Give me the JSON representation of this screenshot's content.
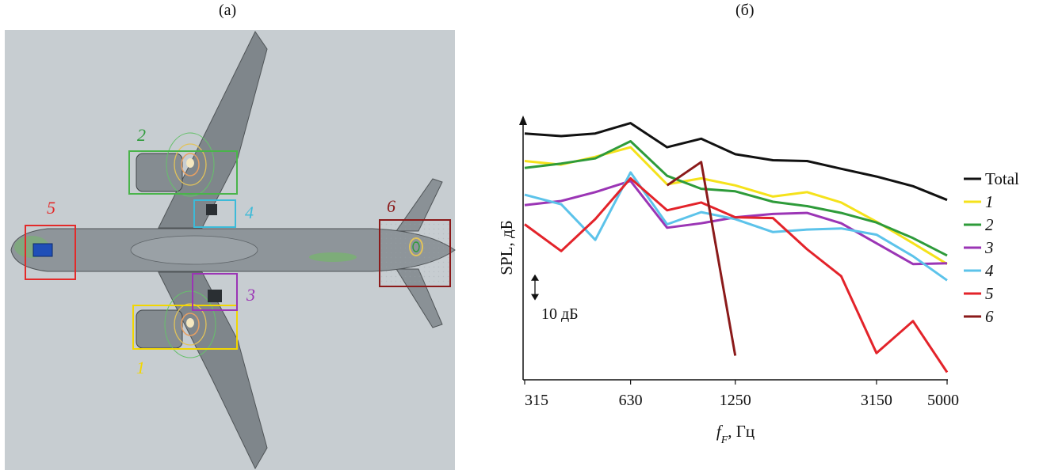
{
  "figure": {
    "panel_a_label": "(а)",
    "panel_b_label": "(б)"
  },
  "panel_a": {
    "regions": [
      {
        "label": "1",
        "color": "#f2d600"
      },
      {
        "label": "2",
        "color": "#2e9b3a"
      },
      {
        "label": "3",
        "color": "#9b35b5"
      },
      {
        "label": "4",
        "color": "#3cbad8"
      },
      {
        "label": "5",
        "color": "#e32a2a"
      },
      {
        "label": "6",
        "color": "#8b1a1a"
      }
    ]
  },
  "chart_data": {
    "type": "line",
    "xlabel_main": "f",
    "xlabel_sub": "F",
    "xlabel_unit": ", Гц",
    "ylabel": "SPL, дБ",
    "x_scale": "log",
    "xlim": [
      315,
      5000
    ],
    "x_ticks": [
      315,
      630,
      1250,
      3150,
      5000
    ],
    "x_tick_labels": [
      "315",
      "630",
      "1250",
      "3150",
      "5000"
    ],
    "ylim": [
      0,
      100
    ],
    "scale_bar": {
      "label": "10 дБ",
      "value": 10
    },
    "grid": false,
    "legend_position": "right",
    "x": [
      315,
      400,
      500,
      630,
      800,
      1000,
      1250,
      1600,
      2000,
      2500,
      3150,
      4000,
      5000
    ],
    "series": [
      {
        "name": "Total",
        "italic": false,
        "color": "#111111",
        "values": [
          94.3,
          93.3,
          94.3,
          98.3,
          89.0,
          92.3,
          86.3,
          84.0,
          83.7,
          80.7,
          77.7,
          74.0,
          68.7
        ]
      },
      {
        "name": "1",
        "italic": true,
        "color": "#f5e21b",
        "values": [
          83.7,
          82.3,
          85.3,
          89.0,
          74.7,
          77.0,
          74.3,
          70.0,
          71.7,
          67.7,
          60.3,
          52.0,
          44.0
        ]
      },
      {
        "name": "2",
        "italic": true,
        "color": "#2e9b3a",
        "values": [
          81.0,
          82.7,
          84.7,
          91.3,
          78.0,
          73.0,
          72.0,
          68.0,
          66.3,
          63.7,
          60.0,
          54.0,
          47.3
        ]
      },
      {
        "name": "3",
        "italic": true,
        "color": "#9b35b5",
        "values": [
          66.7,
          68.3,
          71.7,
          76.0,
          58.0,
          59.7,
          62.0,
          63.3,
          63.7,
          59.7,
          52.0,
          44.0,
          44.3
        ]
      },
      {
        "name": "4",
        "italic": true,
        "color": "#5cc3ea",
        "values": [
          70.7,
          67.0,
          53.3,
          79.3,
          59.3,
          64.0,
          61.3,
          56.3,
          57.3,
          57.7,
          55.3,
          47.0,
          37.7
        ]
      },
      {
        "name": "5",
        "italic": true,
        "color": "#e3232a",
        "values": [
          59.3,
          49.0,
          61.3,
          77.0,
          64.7,
          67.7,
          62.0,
          61.7,
          49.7,
          39.3,
          9.7,
          22.0,
          2.3
        ]
      },
      {
        "name": "6",
        "italic": true,
        "color": "#8b1a1a",
        "x": [
          800,
          1000,
          1250
        ],
        "values": [
          74.3,
          83.3,
          8.7
        ]
      }
    ]
  }
}
